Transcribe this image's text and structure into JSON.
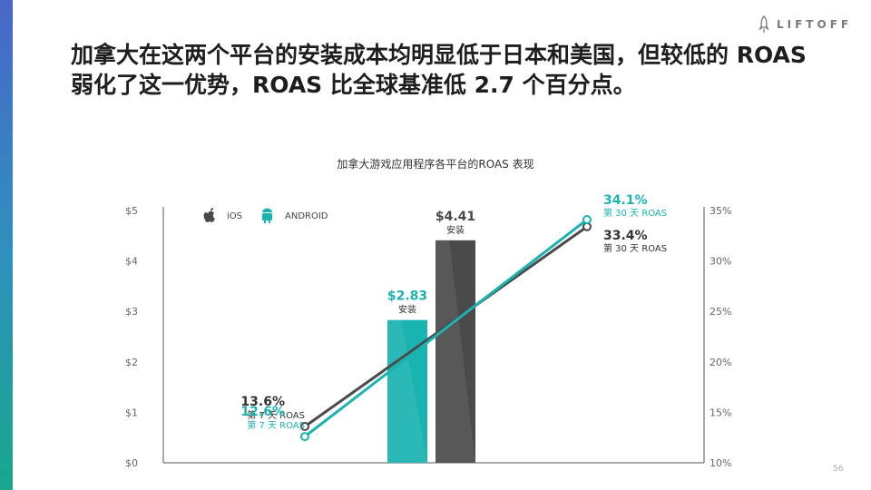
{
  "headline": {
    "line1": "加拿大在这两个平台的安装成本均明显低于日本和美国，但较低的 ROAS",
    "line2": "弱化了这一优势，ROAS 比全球基准低 2.7 个百分点。"
  },
  "logo": {
    "text": "LIFTOFF",
    "icon": "rocket-icon"
  },
  "page_number": "56",
  "colors": {
    "ios": "#4a4a4a",
    "android": "#19b3b1",
    "accent": "#17a88d"
  },
  "chart_data": {
    "type": "bar",
    "title": "加拿大游戏应用程序各平台的ROAS 表现",
    "left_axis": {
      "ticks": [
        "$0",
        "$1",
        "$2",
        "$3",
        "$4",
        "$5"
      ],
      "range": [
        0,
        5
      ]
    },
    "right_axis": {
      "ticks": [
        "10%",
        "15%",
        "20%",
        "25%",
        "30%",
        "35%"
      ],
      "range": [
        10,
        35
      ]
    },
    "legend": [
      {
        "name": "iOS",
        "icon": "apple-icon",
        "color": "#4a4a4a"
      },
      {
        "name": "ANDROID",
        "icon": "android-icon",
        "color": "#19b3b1"
      }
    ],
    "bars": [
      {
        "platform": "ANDROID",
        "value": 2.83,
        "label": "$2.83",
        "sublabel": "安装",
        "color": "#19b3b1"
      },
      {
        "platform": "iOS",
        "value": 4.41,
        "label": "$4.41",
        "sublabel": "安装",
        "color": "#4a4a4a"
      }
    ],
    "roas_lines": [
      {
        "platform": "iOS",
        "color": "#4a4a4a",
        "start": {
          "value": 13.6,
          "label": "13.6%",
          "sublabel": "第 7 天 ROAS"
        },
        "end": {
          "value": 33.4,
          "label": "33.4%",
          "sublabel": "第 30 天 ROAS"
        }
      },
      {
        "platform": "ANDROID",
        "color": "#19b3b1",
        "start": {
          "value": 12.6,
          "label": "12.6%",
          "sublabel": "第 7 天 ROAS"
        },
        "end": {
          "value": 34.1,
          "label": "34.1%",
          "sublabel": "第 30 天 ROAS"
        }
      }
    ]
  }
}
